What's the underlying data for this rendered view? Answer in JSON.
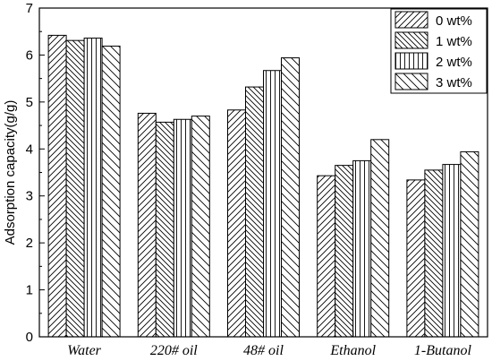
{
  "chart_data": {
    "type": "bar",
    "categories": [
      "Water",
      "220# oil",
      "48# oil",
      "Ethanol",
      "1-Butanol"
    ],
    "series": [
      {
        "name": "0 wt%",
        "values": [
          6.42,
          4.76,
          4.83,
          3.43,
          3.34
        ],
        "pattern": "diag-up"
      },
      {
        "name": "1 wt%",
        "values": [
          6.31,
          4.57,
          5.32,
          3.65,
          3.55
        ],
        "pattern": "diag-down"
      },
      {
        "name": "2 wt%",
        "values": [
          6.36,
          4.63,
          5.67,
          3.75,
          3.67
        ],
        "pattern": "vertical"
      },
      {
        "name": "3 wt%",
        "values": [
          6.19,
          4.7,
          5.94,
          4.2,
          3.94
        ],
        "pattern": "diag-down-sparse"
      }
    ],
    "xlabel": "",
    "ylabel": "Adsorption capacity(g/g)",
    "ylim": [
      0,
      7
    ],
    "yticks": [
      "0",
      "1",
      "2",
      "3",
      "4",
      "5",
      "6",
      "7"
    ],
    "grid": false,
    "legend_position": "top-right"
  }
}
